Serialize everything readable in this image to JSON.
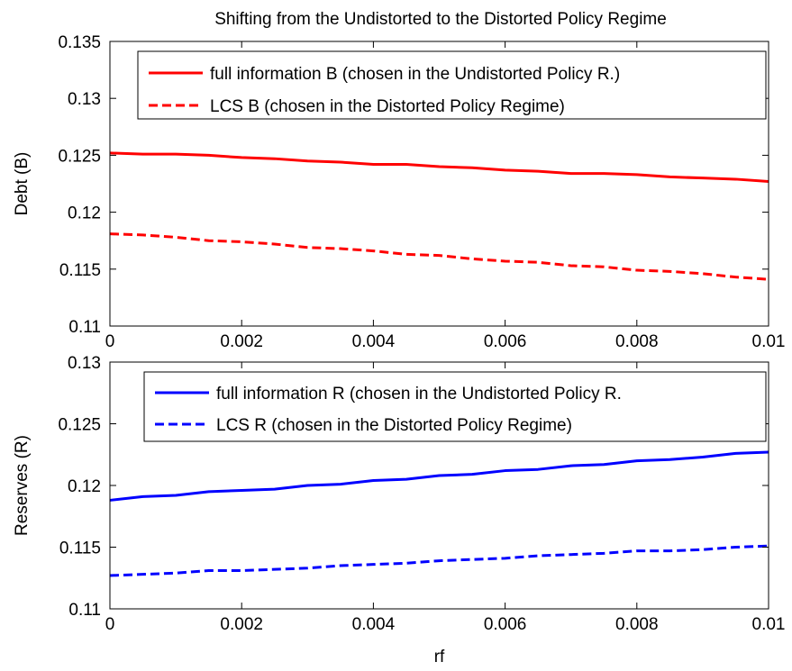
{
  "figure": {
    "title": "Shifting from the Undistorted to the Distorted Policy Regime"
  },
  "chart_data": [
    {
      "type": "line",
      "title": "Shifting from the Undistorted to the Distorted Policy Regime",
      "xlabel": "",
      "ylabel": "Debt (B)",
      "xlim": [
        0,
        0.01
      ],
      "ylim": [
        0.11,
        0.135
      ],
      "xticks": [
        0,
        0.002,
        0.004,
        0.006,
        0.008,
        0.01
      ],
      "xtick_labels": [
        "0",
        "0.002",
        "0.004",
        "0.006",
        "0.008",
        "0.01"
      ],
      "yticks": [
        0.11,
        0.115,
        0.12,
        0.125,
        0.13,
        0.135
      ],
      "ytick_labels": [
        "0.11",
        "0.115",
        "0.12",
        "0.125",
        "0.13",
        "0.135"
      ],
      "grid": false,
      "legend_position": "top-right",
      "x": [
        0,
        0.0005,
        0.001,
        0.0015,
        0.002,
        0.0025,
        0.003,
        0.0035,
        0.004,
        0.0045,
        0.005,
        0.0055,
        0.006,
        0.0065,
        0.007,
        0.0075,
        0.008,
        0.0085,
        0.009,
        0.0095,
        0.01
      ],
      "series": [
        {
          "name": "full information B (chosen in the Undistorted Policy R.)",
          "color": "#ff0000",
          "dash": "solid",
          "values": [
            0.1252,
            0.1251,
            0.1251,
            0.125,
            0.1248,
            0.1247,
            0.1245,
            0.1244,
            0.1242,
            0.1242,
            0.124,
            0.1239,
            0.1237,
            0.1236,
            0.1234,
            0.1234,
            0.1233,
            0.1231,
            0.123,
            0.1229,
            0.1227
          ]
        },
        {
          "name": "LCS B (chosen in the Distorted Policy Regime)",
          "color": "#ff0000",
          "dash": "dashed",
          "values": [
            0.1181,
            0.118,
            0.1178,
            0.1175,
            0.1174,
            0.1172,
            0.1169,
            0.1168,
            0.1166,
            0.1163,
            0.1162,
            0.1159,
            0.1157,
            0.1156,
            0.1153,
            0.1152,
            0.1149,
            0.1148,
            0.1146,
            0.1143,
            0.1141
          ]
        }
      ]
    },
    {
      "type": "line",
      "title": "",
      "xlabel": "rf",
      "ylabel": "Reserves (R)",
      "xlim": [
        0,
        0.01
      ],
      "ylim": [
        0.11,
        0.13
      ],
      "xticks": [
        0,
        0.002,
        0.004,
        0.006,
        0.008,
        0.01
      ],
      "xtick_labels": [
        "0",
        "0.002",
        "0.004",
        "0.006",
        "0.008",
        "0.01"
      ],
      "yticks": [
        0.11,
        0.115,
        0.12,
        0.125,
        0.13
      ],
      "ytick_labels": [
        "0.11",
        "0.115",
        "0.12",
        "0.125",
        "0.13"
      ],
      "grid": false,
      "legend_position": "top-right",
      "x": [
        0,
        0.0005,
        0.001,
        0.0015,
        0.002,
        0.0025,
        0.003,
        0.0035,
        0.004,
        0.0045,
        0.005,
        0.0055,
        0.006,
        0.0065,
        0.007,
        0.0075,
        0.008,
        0.0085,
        0.009,
        0.0095,
        0.01
      ],
      "series": [
        {
          "name": "full information R (chosen in the Undistorted Policy R.",
          "color": "#0000ff",
          "dash": "solid",
          "values": [
            0.1188,
            0.1191,
            0.1192,
            0.1195,
            0.1196,
            0.1197,
            0.12,
            0.1201,
            0.1204,
            0.1205,
            0.1208,
            0.1209,
            0.1212,
            0.1213,
            0.1216,
            0.1217,
            0.122,
            0.1221,
            0.1223,
            0.1226,
            0.1227
          ]
        },
        {
          "name": "LCS R (chosen in the Distorted Policy Regime)",
          "color": "#0000ff",
          "dash": "dashed",
          "values": [
            0.1127,
            0.1128,
            0.1129,
            0.1131,
            0.1131,
            0.1132,
            0.1133,
            0.1135,
            0.1136,
            0.1137,
            0.1139,
            0.114,
            0.1141,
            0.1143,
            0.1144,
            0.1145,
            0.1147,
            0.1147,
            0.1148,
            0.115,
            0.1151
          ]
        }
      ]
    }
  ]
}
